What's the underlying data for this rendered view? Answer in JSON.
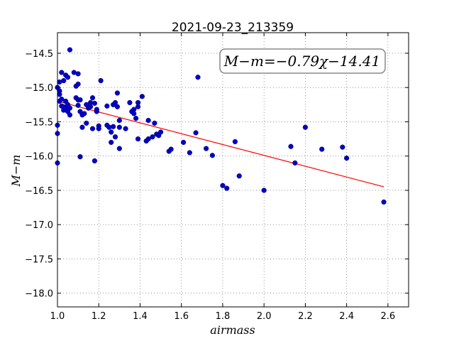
{
  "chart_data": {
    "type": "scatter",
    "title": "2021-09-23_213359",
    "xlabel": "airmass",
    "ylabel": "M−m",
    "xlim": [
      1.0,
      2.7
    ],
    "ylim": [
      -18.2,
      -14.2
    ],
    "y_inverted": true,
    "grid": true,
    "x_ticks": [
      1.0,
      1.2,
      1.4,
      1.6,
      1.8,
      2.0,
      2.2,
      2.4,
      2.6
    ],
    "x_tick_labels": [
      "1.0",
      "1.2",
      "1.4",
      "1.6",
      "1.8",
      "2.0",
      "2.2",
      "2.4",
      "2.6"
    ],
    "y_ticks": [
      -14.5,
      -15.0,
      -15.5,
      -16.0,
      -16.5,
      -17.0,
      -17.5,
      -18.0
    ],
    "y_tick_labels": [
      "−14.5",
      "−15.0",
      "−15.5",
      "−16.0",
      "−16.5",
      "−17.0",
      "−17.5",
      "−18.0"
    ],
    "annotation": "M−m=−0.79χ−14.41",
    "fit": {
      "slope": -0.79,
      "intercept": -14.41,
      "x_range": [
        1.0,
        2.58
      ],
      "color": "#ff0000"
    },
    "point_color": "#0000cc",
    "points": [
      [
        1.0,
        -15.0
      ],
      [
        1.0,
        -15.55
      ],
      [
        1.0,
        -15.67
      ],
      [
        1.0,
        -16.1
      ],
      [
        1.01,
        -15.1
      ],
      [
        1.01,
        -15.05
      ],
      [
        1.01,
        -14.92
      ],
      [
        1.01,
        -15.2
      ],
      [
        1.02,
        -14.78
      ],
      [
        1.02,
        -15.17
      ],
      [
        1.02,
        -15.27
      ],
      [
        1.03,
        -14.9
      ],
      [
        1.03,
        -15.33
      ],
      [
        1.03,
        -15.28
      ],
      [
        1.04,
        -14.82
      ],
      [
        1.04,
        -15.3
      ],
      [
        1.04,
        -15.2
      ],
      [
        1.05,
        -14.85
      ],
      [
        1.05,
        -15.27
      ],
      [
        1.05,
        -15.35
      ],
      [
        1.05,
        -15.25
      ],
      [
        1.06,
        -14.45
      ],
      [
        1.06,
        -15.4
      ],
      [
        1.06,
        -15.3
      ],
      [
        1.08,
        -14.78
      ],
      [
        1.09,
        -15.15
      ],
      [
        1.09,
        -14.98
      ],
      [
        1.1,
        -15.18
      ],
      [
        1.1,
        -14.8
      ],
      [
        1.1,
        -15.26
      ],
      [
        1.1,
        -14.95
      ],
      [
        1.11,
        -15.35
      ],
      [
        1.11,
        -16.01
      ],
      [
        1.11,
        -15.18
      ],
      [
        1.12,
        -15.4
      ],
      [
        1.12,
        -15.58
      ],
      [
        1.13,
        -15.38
      ],
      [
        1.14,
        -15.25
      ],
      [
        1.14,
        -15.52
      ],
      [
        1.15,
        -15.3
      ],
      [
        1.16,
        -15.22
      ],
      [
        1.16,
        -15.28
      ],
      [
        1.17,
        -15.15
      ],
      [
        1.17,
        -15.6
      ],
      [
        1.18,
        -15.23
      ],
      [
        1.18,
        -16.07
      ],
      [
        1.19,
        -15.32
      ],
      [
        1.19,
        -15.35
      ],
      [
        1.2,
        -15.56
      ],
      [
        1.2,
        -15.6
      ],
      [
        1.21,
        -14.9
      ],
      [
        1.24,
        -15.27
      ],
      [
        1.24,
        -15.55
      ],
      [
        1.25,
        -15.58
      ],
      [
        1.26,
        -15.65
      ],
      [
        1.26,
        -15.8
      ],
      [
        1.27,
        -15.57
      ],
      [
        1.27,
        -15.25
      ],
      [
        1.28,
        -15.22
      ],
      [
        1.28,
        -15.72
      ],
      [
        1.29,
        -15.28
      ],
      [
        1.29,
        -15.08
      ],
      [
        1.3,
        -15.48
      ],
      [
        1.3,
        -15.58
      ],
      [
        1.3,
        -15.89
      ],
      [
        1.33,
        -15.6
      ],
      [
        1.35,
        -15.22
      ],
      [
        1.36,
        -15.35
      ],
      [
        1.37,
        -15.32
      ],
      [
        1.37,
        -15.38
      ],
      [
        1.38,
        -15.45
      ],
      [
        1.39,
        -15.22
      ],
      [
        1.39,
        -15.28
      ],
      [
        1.39,
        -15.75
      ],
      [
        1.41,
        -15.13
      ],
      [
        1.43,
        -15.78
      ],
      [
        1.44,
        -15.48
      ],
      [
        1.44,
        -15.75
      ],
      [
        1.46,
        -15.72
      ],
      [
        1.47,
        -15.52
      ],
      [
        1.48,
        -15.68
      ],
      [
        1.49,
        -15.7
      ],
      [
        1.5,
        -15.65
      ],
      [
        1.54,
        -15.93
      ],
      [
        1.55,
        -15.9
      ],
      [
        1.61,
        -15.8
      ],
      [
        1.64,
        -15.95
      ],
      [
        1.67,
        -15.66
      ],
      [
        1.68,
        -14.85
      ],
      [
        1.72,
        -15.89
      ],
      [
        1.75,
        -15.99
      ],
      [
        1.8,
        -16.43
      ],
      [
        1.82,
        -16.47
      ],
      [
        1.86,
        -15.79
      ],
      [
        1.88,
        -16.29
      ],
      [
        2.0,
        -16.5
      ],
      [
        2.13,
        -15.86
      ],
      [
        2.15,
        -16.1
      ],
      [
        2.2,
        -15.58
      ],
      [
        2.28,
        -15.9
      ],
      [
        2.38,
        -15.87
      ],
      [
        2.4,
        -16.03
      ],
      [
        2.58,
        -16.67
      ]
    ]
  }
}
